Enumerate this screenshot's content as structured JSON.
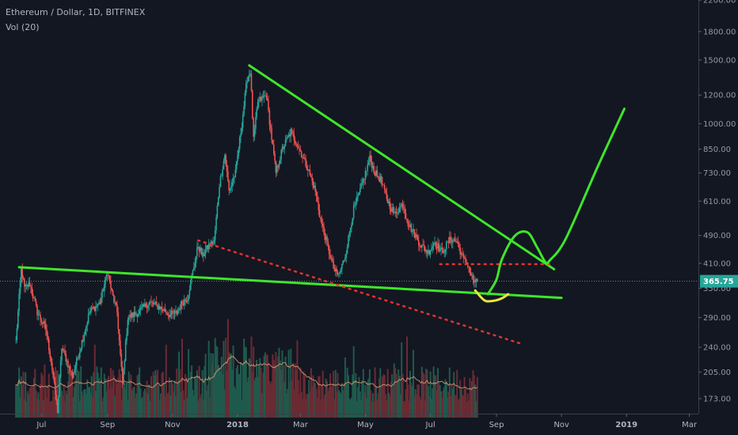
{
  "header": {
    "symbol": "Ethereum / Dollar, 1D, BITFINEX",
    "volume_indicator": "Vol (20)"
  },
  "chart_data": {
    "type": "candlestick",
    "y_scale": "log",
    "y_ticks": [
      {
        "v": 2200,
        "label": "2200.00"
      },
      {
        "v": 1800,
        "label": "1800.00"
      },
      {
        "v": 1500,
        "label": "1500.00"
      },
      {
        "v": 1200,
        "label": "1200.00"
      },
      {
        "v": 1000,
        "label": "1000.00"
      },
      {
        "v": 850,
        "label": "850.00"
      },
      {
        "v": 730,
        "label": "730.00"
      },
      {
        "v": 610,
        "label": "610.00"
      },
      {
        "v": 490,
        "label": "490.00"
      },
      {
        "v": 410,
        "label": "410.00"
      },
      {
        "v": 350,
        "label": "350.00"
      },
      {
        "v": 290,
        "label": "290.00"
      },
      {
        "v": 240,
        "label": "240.00"
      },
      {
        "v": 205,
        "label": "205.00"
      },
      {
        "v": 173,
        "label": "173.00"
      }
    ],
    "x_ticks": [
      {
        "date": "2017-07-01",
        "label": "Jul",
        "bold": false
      },
      {
        "date": "2017-09-01",
        "label": "Sep",
        "bold": false
      },
      {
        "date": "2017-11-01",
        "label": "Nov",
        "bold": false
      },
      {
        "date": "2018-01-01",
        "label": "2018",
        "bold": true
      },
      {
        "date": "2018-03-01",
        "label": "Mar",
        "bold": false
      },
      {
        "date": "2018-05-01",
        "label": "May",
        "bold": false
      },
      {
        "date": "2018-07-01",
        "label": "Jul",
        "bold": false
      },
      {
        "date": "2018-09-01",
        "label": "Sep",
        "bold": false
      },
      {
        "date": "2018-11-01",
        "label": "Nov",
        "bold": false
      },
      {
        "date": "2019-01-01",
        "label": "2019",
        "bold": true
      },
      {
        "date": "2019-03-01",
        "label": "Mar",
        "bold": false
      }
    ],
    "last_price": {
      "value": 365.75,
      "label": "365.75",
      "color": "#26a69a"
    },
    "price_path": [
      [
        "2017-06-07",
        250
      ],
      [
        "2017-06-12",
        395
      ],
      [
        "2017-06-15",
        350
      ],
      [
        "2017-06-20",
        360
      ],
      [
        "2017-06-27",
        300
      ],
      [
        "2017-07-05",
        270
      ],
      [
        "2017-07-10",
        220
      ],
      [
        "2017-07-16",
        160
      ],
      [
        "2017-07-20",
        240
      ],
      [
        "2017-07-30",
        200
      ],
      [
        "2017-08-05",
        230
      ],
      [
        "2017-08-15",
        300
      ],
      [
        "2017-08-25",
        320
      ],
      [
        "2017-09-01",
        390
      ],
      [
        "2017-09-05",
        340
      ],
      [
        "2017-09-10",
        300
      ],
      [
        "2017-09-15",
        190
      ],
      [
        "2017-09-20",
        290
      ],
      [
        "2017-09-30",
        300
      ],
      [
        "2017-10-10",
        320
      ],
      [
        "2017-10-20",
        310
      ],
      [
        "2017-10-30",
        295
      ],
      [
        "2017-11-05",
        300
      ],
      [
        "2017-11-10",
        320
      ],
      [
        "2017-11-15",
        330
      ],
      [
        "2017-11-25",
        460
      ],
      [
        "2017-11-29",
        430
      ],
      [
        "2017-12-05",
        460
      ],
      [
        "2017-12-10",
        470
      ],
      [
        "2017-12-15",
        680
      ],
      [
        "2017-12-20",
        820
      ],
      [
        "2017-12-24",
        650
      ],
      [
        "2017-12-30",
        730
      ],
      [
        "2018-01-05",
        1000
      ],
      [
        "2018-01-10",
        1340
      ],
      [
        "2018-01-13",
        1400
      ],
      [
        "2018-01-16",
        900
      ],
      [
        "2018-01-20",
        1150
      ],
      [
        "2018-01-28",
        1200
      ],
      [
        "2018-02-06",
        730
      ],
      [
        "2018-02-12",
        850
      ],
      [
        "2018-02-20",
        950
      ],
      [
        "2018-02-28",
        850
      ],
      [
        "2018-03-08",
        750
      ],
      [
        "2018-03-15",
        650
      ],
      [
        "2018-03-20",
        540
      ],
      [
        "2018-03-28",
        440
      ],
      [
        "2018-04-02",
        390
      ],
      [
        "2018-04-06",
        380
      ],
      [
        "2018-04-12",
        430
      ],
      [
        "2018-04-20",
        580
      ],
      [
        "2018-04-26",
        650
      ],
      [
        "2018-05-05",
        800
      ],
      [
        "2018-05-10",
        730
      ],
      [
        "2018-05-15",
        700
      ],
      [
        "2018-05-22",
        610
      ],
      [
        "2018-05-28",
        560
      ],
      [
        "2018-06-05",
        600
      ],
      [
        "2018-06-10",
        530
      ],
      [
        "2018-06-15",
        500
      ],
      [
        "2018-06-22",
        460
      ],
      [
        "2018-06-29",
        440
      ],
      [
        "2018-07-05",
        470
      ],
      [
        "2018-07-12",
        440
      ],
      [
        "2018-07-20",
        480
      ],
      [
        "2018-07-26",
        470
      ],
      [
        "2018-08-01",
        420
      ],
      [
        "2018-08-05",
        410
      ],
      [
        "2018-08-08",
        380
      ],
      [
        "2018-08-12",
        360
      ],
      [
        "2018-08-14",
        365.75
      ]
    ],
    "drawings": [
      {
        "name": "upper-trendline",
        "color": "#3ee62a",
        "dash": false,
        "points": [
          [
            "2018-01-12",
            1450
          ],
          [
            "2018-10-25",
            395
          ]
        ]
      },
      {
        "name": "lower-trendline",
        "color": "#3ee62a",
        "dash": false,
        "points": [
          [
            "2017-06-10",
            400
          ],
          [
            "2018-11-01",
            329
          ]
        ]
      },
      {
        "name": "falling-support-dotted",
        "color": "#e2332d",
        "dash": true,
        "points": [
          [
            "2017-11-25",
            475
          ],
          [
            "2018-09-25",
            245
          ]
        ]
      },
      {
        "name": "horizontal-resistance-dotted",
        "color": "#e2332d",
        "dash": true,
        "points": [
          [
            "2018-07-10",
            408
          ],
          [
            "2018-10-25",
            408
          ]
        ]
      },
      {
        "name": "projection-path",
        "color": "#3ee62a",
        "dash": false,
        "points": [
          [
            "2018-08-24",
            337
          ],
          [
            "2018-09-01",
            370
          ],
          [
            "2018-09-06",
            420
          ],
          [
            "2018-09-18",
            488
          ],
          [
            "2018-09-30",
            500
          ],
          [
            "2018-10-09",
            455
          ],
          [
            "2018-10-17",
            413
          ],
          [
            "2018-10-21",
            418
          ],
          [
            "2018-11-05",
            480
          ],
          [
            "2018-12-05",
            760
          ],
          [
            "2018-12-30",
            1100
          ]
        ]
      },
      {
        "name": "rounded-bottom-arc",
        "color": "#e6e63c",
        "dash": false,
        "points": [
          [
            "2018-08-12",
            345
          ],
          [
            "2018-08-20",
            325
          ],
          [
            "2018-08-26",
            322
          ],
          [
            "2018-09-05",
            327
          ],
          [
            "2018-09-12",
            337
          ]
        ]
      }
    ]
  }
}
